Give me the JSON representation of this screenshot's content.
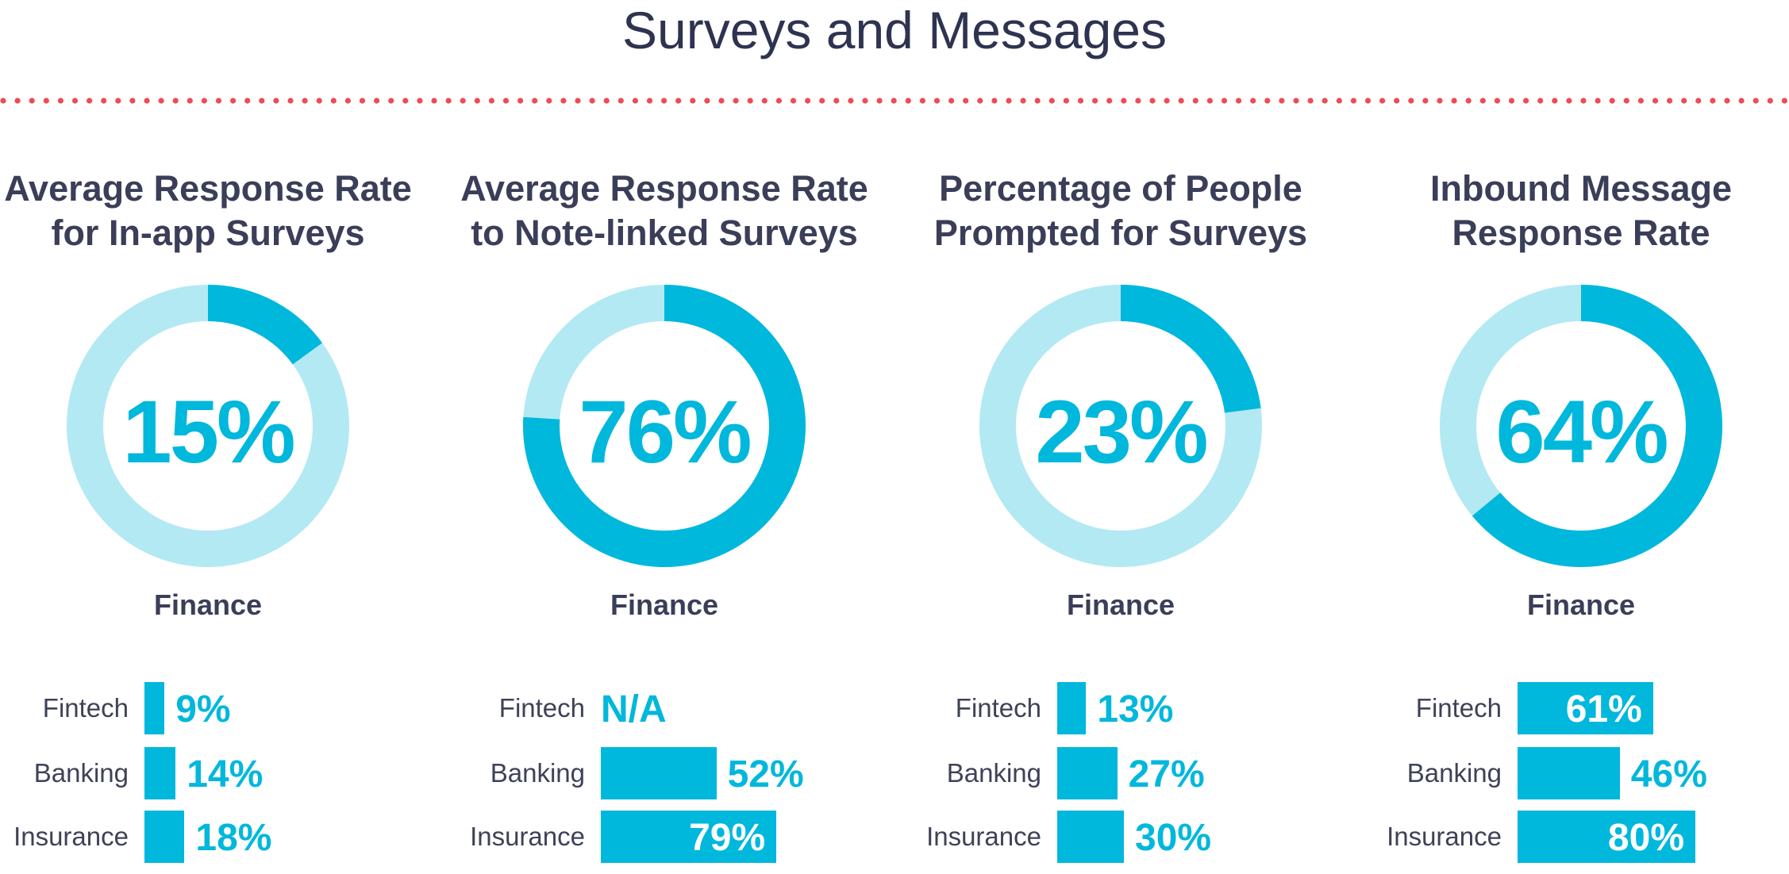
{
  "title": "Surveys and Messages",
  "colors": {
    "accent": "#00b7dc",
    "track": "#b3e9f3",
    "divider": "#ee4b55",
    "text": "#2e3350"
  },
  "chart_data": [
    {
      "type": "pie",
      "title": "Average Response Rate for In-app Surveys",
      "sector": "Finance",
      "value": 15,
      "value_label": "15%",
      "breakdown": {
        "type": "bar",
        "categories": [
          "Fintech",
          "Banking",
          "Insurance"
        ],
        "values": [
          9,
          14,
          18
        ],
        "labels": [
          "9%",
          "14%",
          "18%"
        ]
      }
    },
    {
      "type": "pie",
      "title": "Average Response Rate to Note-linked Surveys",
      "sector": "Finance",
      "value": 76,
      "value_label": "76%",
      "breakdown": {
        "type": "bar",
        "categories": [
          "Fintech",
          "Banking",
          "Insurance"
        ],
        "values": [
          null,
          52,
          79
        ],
        "labels": [
          "N/A",
          "52%",
          "79%"
        ]
      }
    },
    {
      "type": "pie",
      "title": "Percentage of People Prompted for Surveys",
      "sector": "Finance",
      "value": 23,
      "value_label": "23%",
      "breakdown": {
        "type": "bar",
        "categories": [
          "Fintech",
          "Banking",
          "Insurance"
        ],
        "values": [
          13,
          27,
          30
        ],
        "labels": [
          "13%",
          "27%",
          "30%"
        ]
      }
    },
    {
      "type": "pie",
      "title": "Inbound Message Response Rate",
      "sector": "Finance",
      "value": 64,
      "value_label": "64%",
      "breakdown": {
        "type": "bar",
        "categories": [
          "Fintech",
          "Banking",
          "Insurance"
        ],
        "values": [
          61,
          46,
          80
        ],
        "labels": [
          "61%",
          "46%",
          "80%"
        ]
      }
    }
  ]
}
